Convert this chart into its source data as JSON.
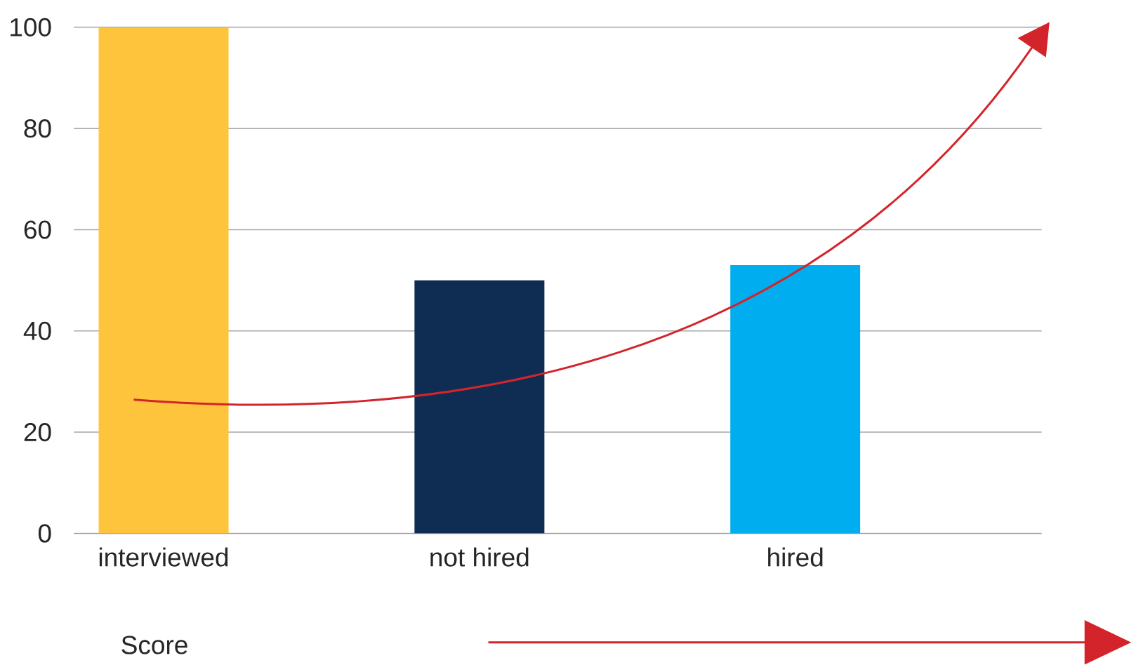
{
  "chart_data": {
    "type": "bar",
    "xlabel": "Score",
    "categories": [
      "interviewed",
      "not hired",
      "hired"
    ],
    "values": [
      100,
      50,
      53
    ],
    "colors": [
      "#fdc43c",
      "#0f2d52",
      "#00aeef"
    ],
    "ylim": [
      0,
      100
    ],
    "yticks": [
      0,
      20,
      40,
      60,
      80,
      100
    ],
    "grid": "y"
  }
}
